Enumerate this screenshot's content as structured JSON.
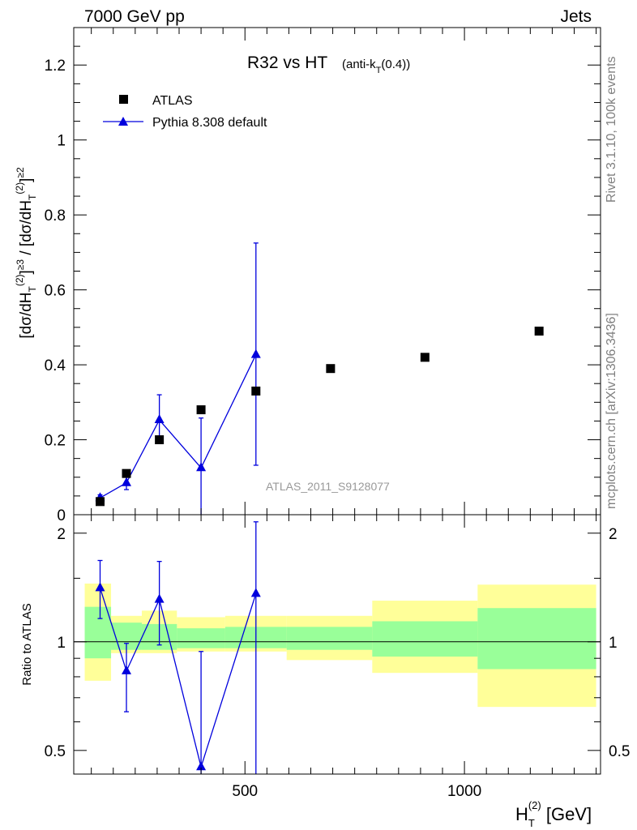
{
  "header": {
    "left_label": "7000 GeV pp",
    "right_label": "Jets"
  },
  "side_labels": {
    "rivet": "Rivet 3.1.10,  100k events",
    "mcplots": "mcplots.cern.ch [arXiv:1306.3436]"
  },
  "chart_data": [
    {
      "type": "scatter",
      "title": "R32 vs HT",
      "title_suffix": "(anti-k",
      "title_suffix_sub": "T",
      "title_suffix_end": "(0.4))",
      "watermark": "ATLAS_2011_S9128077",
      "ylabel": "[dσ/dH_T^(2)]^≥3 / [dσ/dH_T^(2)]^≥2",
      "ylim": [
        0,
        1.3
      ],
      "y_ticks": [
        0,
        0.2,
        0.4,
        0.6,
        0.8,
        1,
        1.2
      ],
      "y_tick_labels": [
        "0",
        "0.2",
        "0.4",
        "0.6",
        "0.8",
        "1",
        "1.2"
      ],
      "xlim": [
        110,
        1310
      ],
      "legend_position": "top-left",
      "series": [
        {
          "name": "ATLAS",
          "marker": "square",
          "color": "#000000",
          "x": [
            170,
            230,
            305,
            400,
            525,
            695,
            910,
            1170
          ],
          "y": [
            0.035,
            0.11,
            0.2,
            0.28,
            0.33,
            0.39,
            0.42,
            0.49
          ]
        },
        {
          "name": "Pythia 8.308 default",
          "marker": "triangle",
          "color": "#0000dd",
          "x": [
            170,
            230,
            305,
            400,
            525
          ],
          "y": [
            0.045,
            0.085,
            0.253,
            0.125,
            0.427
          ],
          "yerr_low": [
            0.008,
            0.018,
            0.06,
            0.125,
            0.295
          ],
          "yerr_high": [
            0.008,
            0.018,
            0.067,
            0.133,
            0.298
          ]
        }
      ]
    },
    {
      "type": "scatter",
      "ylabel": "Ratio to ATLAS",
      "xlabel": "H_T^(2) [GeV]",
      "ylim": [
        0.43,
        2.25
      ],
      "y_ticks": [
        0.5,
        1,
        2
      ],
      "y_tick_labels": [
        "0.5",
        "1",
        "2"
      ],
      "xlim": [
        110,
        1310
      ],
      "x_ticks": [
        500,
        1000
      ],
      "x_tick_labels": [
        "500",
        "1000"
      ],
      "reference_line": 1,
      "bands": [
        {
          "x0": 135,
          "x1": 195,
          "yellow": [
            0.78,
            1.45
          ],
          "green": [
            0.9,
            1.25
          ]
        },
        {
          "x0": 195,
          "x1": 265,
          "yellow": [
            0.93,
            1.18
          ],
          "green": [
            0.95,
            1.13
          ]
        },
        {
          "x0": 265,
          "x1": 345,
          "yellow": [
            0.93,
            1.22
          ],
          "green": [
            0.95,
            1.12
          ]
        },
        {
          "x0": 345,
          "x1": 455,
          "yellow": [
            0.94,
            1.17
          ],
          "green": [
            0.96,
            1.09
          ]
        },
        {
          "x0": 455,
          "x1": 595,
          "yellow": [
            0.94,
            1.18
          ],
          "green": [
            0.96,
            1.1
          ]
        },
        {
          "x0": 595,
          "x1": 790,
          "yellow": [
            0.89,
            1.18
          ],
          "green": [
            0.95,
            1.1
          ]
        },
        {
          "x0": 790,
          "x1": 1030,
          "yellow": [
            0.82,
            1.3
          ],
          "green": [
            0.91,
            1.14
          ]
        },
        {
          "x0": 1030,
          "x1": 1300,
          "yellow": [
            0.66,
            1.44
          ],
          "green": [
            0.84,
            1.24
          ]
        }
      ],
      "series": [
        {
          "name": "Pythia 8.308 default",
          "marker": "triangle",
          "color": "#0000dd",
          "x": [
            170,
            230,
            305,
            400,
            525
          ],
          "y": [
            1.41,
            0.83,
            1.31,
            0.45,
            1.36
          ],
          "yerr_low": [
            0.25,
            0.19,
            0.33,
            0.45,
            1.0
          ],
          "yerr_high": [
            0.27,
            0.16,
            0.36,
            0.49,
            0.79
          ]
        }
      ]
    }
  ]
}
